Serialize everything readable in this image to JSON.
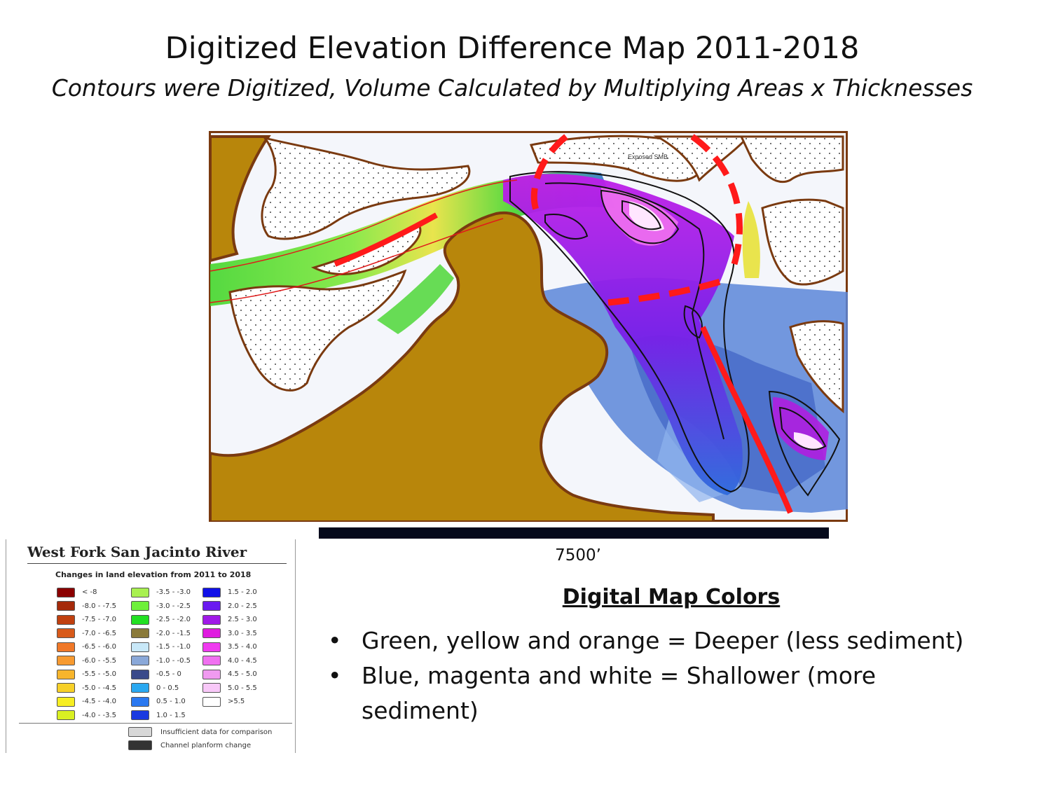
{
  "title": "Digitized Elevation Difference Map 2011-2018",
  "subtitle": "Contours were Digitized, Volume Calculated by Multiplying Areas x Thicknesses",
  "map": {
    "feature_label": "Exposed SMB",
    "scale_label": "7500’",
    "colors": {
      "land": "#b8860b",
      "land_outline": "#7a3a10",
      "deep_green": "#44d62c",
      "deep_yellow": "#e8e23a",
      "shallow_blue": "#2e6bdc",
      "shallow_magenta": "#b01ee0",
      "shallow_white": "#ffe6ff",
      "annotation_red": "#ff1a1a"
    }
  },
  "legend": {
    "title": "West Fork San Jacinto River",
    "subtitle": "Changes in land elevation from 2011 to 2018",
    "columns": [
      [
        {
          "range": "< -8",
          "color": "#8b0000"
        },
        {
          "range": "-8.0 - -7.5",
          "color": "#a52a0a"
        },
        {
          "range": "-7.5 - -7.0",
          "color": "#c0400f"
        },
        {
          "range": "-7.0 - -6.5",
          "color": "#d85a1a"
        },
        {
          "range": "-6.5 - -6.0",
          "color": "#f07828"
        },
        {
          "range": "-6.0 - -5.5",
          "color": "#f79a30"
        },
        {
          "range": "-5.5 - -5.0",
          "color": "#f7b52c"
        },
        {
          "range": "-5.0 - -4.5",
          "color": "#f7d028"
        },
        {
          "range": "-4.5 - -4.0",
          "color": "#f7ee22"
        },
        {
          "range": "-4.0 - -3.5",
          "color": "#d9f022"
        }
      ],
      [
        {
          "range": "-3.5 - -3.0",
          "color": "#a8f050"
        },
        {
          "range": "-3.0 - -2.5",
          "color": "#6ef03a"
        },
        {
          "range": "-2.5 - -2.0",
          "color": "#22e022"
        },
        {
          "range": "-2.0 - -1.5",
          "color": "#8a7a3a"
        },
        {
          "range": "-1.5 - -1.0",
          "color": "#c8e8f8"
        },
        {
          "range": "-1.0 - -0.5",
          "color": "#8aa8d8"
        },
        {
          "range": "-0.5 - 0",
          "color": "#3a4a8a"
        },
        {
          "range": "0 - 0.5",
          "color": "#2aa8f0"
        },
        {
          "range": "0.5 - 1.0",
          "color": "#2a78f0"
        },
        {
          "range": "1.0 - 1.5",
          "color": "#1a3ae0"
        }
      ],
      [
        {
          "range": "1.5 - 2.0",
          "color": "#1010e8"
        },
        {
          "range": "2.0 - 2.5",
          "color": "#6a1af0"
        },
        {
          "range": "2.5 - 3.0",
          "color": "#a01ae8"
        },
        {
          "range": "3.0 - 3.5",
          "color": "#e01ae0"
        },
        {
          "range": "3.5 - 4.0",
          "color": "#f03af0"
        },
        {
          "range": "4.0 - 4.5",
          "color": "#f070f0"
        },
        {
          "range": "4.5 - 5.0",
          "color": "#f09af0"
        },
        {
          "range": "5.0 - 5.5",
          "color": "#f8c8f8"
        },
        {
          "range": ">5.5",
          "color": "#ffffff"
        }
      ]
    ],
    "insufficient_label": "Insufficient data for comparison",
    "channel_label": "Channel planform change",
    "insufficient_color": "#d8d8d8",
    "channel_color": "#333333"
  },
  "notes": {
    "heading": "Digital Map Colors",
    "bullets": [
      "Green, yellow and orange = Deeper (less sediment)",
      "Blue, magenta and white = Shallower (more sediment)"
    ]
  }
}
